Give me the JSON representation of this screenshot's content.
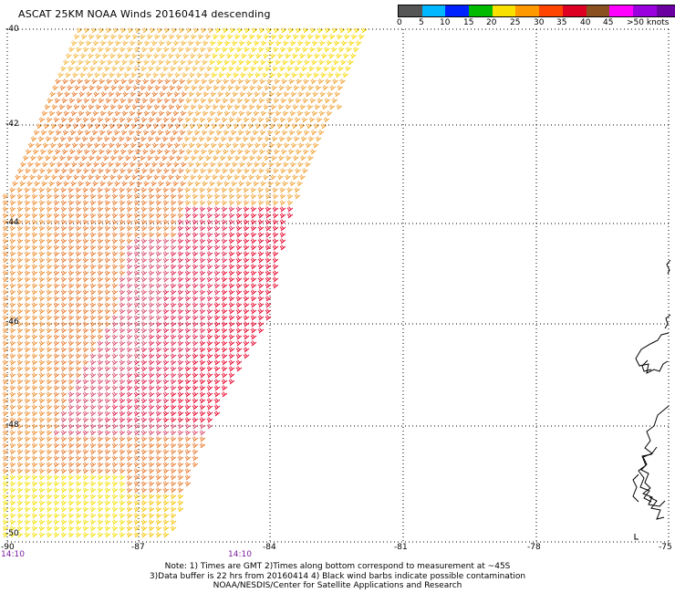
{
  "title": "ASCAT 25KM NOAA Winds 20160414 descending",
  "legend": {
    "colors": [
      "#555555",
      "#00b8ff",
      "#0022ff",
      "#00bb00",
      "#f8e000",
      "#ff9900",
      "#ff4400",
      "#dd0022",
      "#8a5020",
      "#ff00ff",
      "#9900dd",
      "#6a00a0"
    ],
    "labels": [
      "0",
      "5",
      "10",
      "15",
      "20",
      "25",
      "30",
      "35",
      "40",
      "45",
      ">50 knots"
    ]
  },
  "axes": {
    "lon_labels": [
      "-90",
      "-87",
      "-84",
      "-81",
      "-78",
      "-75"
    ],
    "lat_labels": [
      "-40",
      "-42",
      "-44",
      "-46",
      "-48",
      "-50"
    ]
  },
  "times": [
    "14:10",
    "14:10"
  ],
  "notes": [
    "Note: 1) Times are GMT 2)Times along bottom correspond to measurement at ~45S",
    "3)Data buffer is 22 hrs from 20160414 4) Black wind barbs indicate possible contamination",
    "NOAA/NESDIS/Center for Satellite Applications and Research"
  ]
}
